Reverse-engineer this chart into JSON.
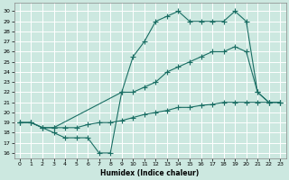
{
  "xlabel": "Humidex (Indice chaleur)",
  "bg_color": "#cce8e0",
  "grid_color": "#ffffff",
  "line_color": "#1a6e64",
  "xlim": [
    -0.5,
    23.5
  ],
  "ylim": [
    15.5,
    30.8
  ],
  "yticks": [
    16,
    17,
    18,
    19,
    20,
    21,
    22,
    23,
    24,
    25,
    26,
    27,
    28,
    29,
    30
  ],
  "xticks": [
    0,
    1,
    2,
    3,
    4,
    5,
    6,
    7,
    8,
    9,
    10,
    11,
    12,
    13,
    14,
    15,
    16,
    17,
    18,
    19,
    20,
    21,
    22,
    23
  ],
  "series": [
    {
      "x": [
        0,
        1,
        2,
        3,
        9,
        10,
        11,
        12,
        13,
        14,
        15,
        16,
        17,
        18,
        19,
        20,
        21,
        22,
        23
      ],
      "y": [
        19,
        19,
        18.5,
        18.5,
        22,
        25.5,
        27,
        29,
        29.5,
        30,
        29,
        29,
        29,
        29,
        30,
        29,
        22,
        21,
        21
      ]
    },
    {
      "x": [
        0,
        1,
        2,
        3,
        4,
        5,
        6,
        7,
        8,
        9,
        10,
        11,
        12,
        13,
        14,
        15,
        16,
        17,
        18,
        19,
        20,
        21,
        22,
        23
      ],
      "y": [
        19,
        19,
        18.5,
        18.5,
        18.5,
        18.5,
        18.8,
        19,
        19,
        19.2,
        19.5,
        19.8,
        20,
        20.2,
        20.5,
        20.5,
        20.7,
        20.8,
        21,
        21,
        21,
        21,
        21,
        21
      ]
    },
    {
      "x": [
        0,
        1,
        2,
        3,
        4,
        5,
        6,
        7,
        8,
        9,
        10,
        11,
        12,
        13,
        14,
        15,
        16,
        17,
        18,
        19,
        20,
        21,
        22,
        23
      ],
      "y": [
        19,
        19,
        18.5,
        18,
        17.5,
        17.5,
        17.5,
        16,
        16,
        22,
        22,
        22.5,
        23,
        24,
        24.5,
        25,
        25.5,
        26,
        26,
        26.5,
        26,
        22,
        21,
        21
      ]
    }
  ]
}
